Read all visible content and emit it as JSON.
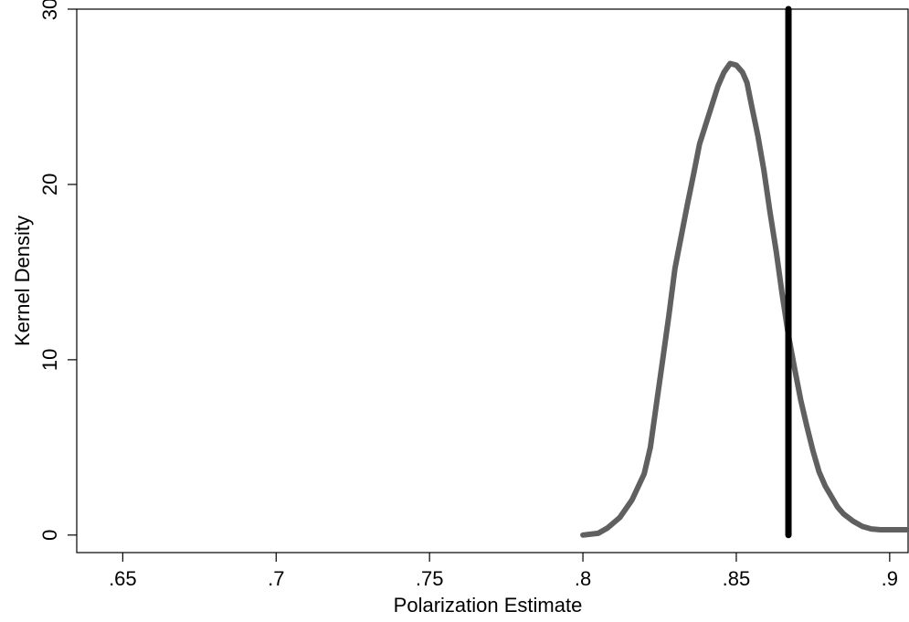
{
  "chart_data": {
    "type": "line",
    "title": "",
    "xlabel": "Polarization Estimate",
    "ylabel": "Kernel Density",
    "xlim": [
      0.635,
      0.906
    ],
    "ylim": [
      -1,
      30
    ],
    "x_ticks": [
      0.65,
      0.7,
      0.75,
      0.8,
      0.85,
      0.9
    ],
    "x_tick_labels": [
      ".65",
      ".7",
      ".75",
      ".8",
      ".85",
      ".9"
    ],
    "y_ticks": [
      0,
      10,
      20,
      30
    ],
    "y_tick_labels": [
      "0",
      "10",
      "20",
      "30"
    ],
    "grid": false,
    "legend": "none",
    "series": [
      {
        "color": "#606060",
        "x": [
          0.8,
          0.805,
          0.808,
          0.812,
          0.816,
          0.82,
          0.822,
          0.824,
          0.826,
          0.828,
          0.83,
          0.832,
          0.834,
          0.836,
          0.838,
          0.84,
          0.842,
          0.844,
          0.846,
          0.848,
          0.85,
          0.852,
          0.8535,
          0.855,
          0.857,
          0.859,
          0.861,
          0.863,
          0.865,
          0.867,
          0.869,
          0.871,
          0.873,
          0.875,
          0.877,
          0.879,
          0.881,
          0.883,
          0.885,
          0.888,
          0.891,
          0.894,
          0.897,
          0.9,
          0.903,
          0.906
        ],
        "y": [
          0.0,
          0.1,
          0.4,
          1.0,
          2.0,
          3.5,
          5.0,
          7.5,
          10.0,
          12.5,
          15.2,
          17.0,
          18.8,
          20.5,
          22.3,
          23.4,
          24.5,
          25.6,
          26.4,
          26.9,
          26.8,
          26.4,
          25.8,
          24.5,
          22.8,
          20.8,
          18.4,
          16.2,
          13.7,
          11.4,
          9.5,
          7.7,
          6.2,
          4.8,
          3.6,
          2.8,
          2.2,
          1.6,
          1.2,
          0.8,
          0.5,
          0.35,
          0.3,
          0.3,
          0.3,
          0.3
        ]
      }
    ],
    "reference_line": {
      "x": 0.867,
      "y_from": 0,
      "y_to": 30,
      "color": "#000000"
    }
  }
}
